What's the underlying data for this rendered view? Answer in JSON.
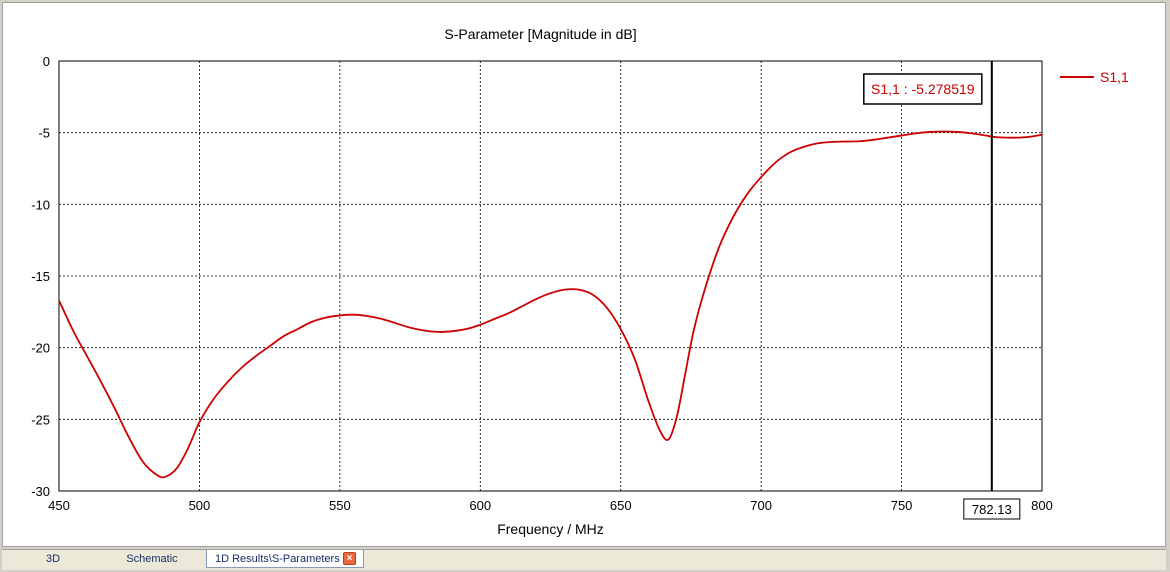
{
  "chart_data": {
    "type": "line",
    "title": "S-Parameter [Magnitude in dB]",
    "xlabel": "Frequency / MHz",
    "ylabel": "",
    "xlim": [
      450,
      800
    ],
    "ylim": [
      -30,
      0
    ],
    "x_ticks": [
      450,
      500,
      550,
      600,
      650,
      700,
      750,
      800
    ],
    "y_ticks": [
      0,
      -5,
      -10,
      -15,
      -20,
      -25,
      -30
    ],
    "grid": true,
    "legend_position": "right",
    "series": [
      {
        "name": "S1,1",
        "color": "#cc0000",
        "points": [
          [
            450,
            -16.7
          ],
          [
            455,
            -18.8
          ],
          [
            460,
            -20.6
          ],
          [
            465,
            -22.4
          ],
          [
            470,
            -24.3
          ],
          [
            475,
            -26.3
          ],
          [
            480,
            -28.0
          ],
          [
            485,
            -28.9
          ],
          [
            488,
            -29.0
          ],
          [
            492,
            -28.4
          ],
          [
            496,
            -27.0
          ],
          [
            500,
            -25.2
          ],
          [
            505,
            -23.6
          ],
          [
            510,
            -22.4
          ],
          [
            515,
            -21.4
          ],
          [
            520,
            -20.6
          ],
          [
            525,
            -19.9
          ],
          [
            530,
            -19.2
          ],
          [
            535,
            -18.7
          ],
          [
            540,
            -18.2
          ],
          [
            545,
            -17.9
          ],
          [
            550,
            -17.75
          ],
          [
            555,
            -17.7
          ],
          [
            560,
            -17.8
          ],
          [
            565,
            -18.0
          ],
          [
            570,
            -18.3
          ],
          [
            575,
            -18.6
          ],
          [
            580,
            -18.8
          ],
          [
            585,
            -18.9
          ],
          [
            590,
            -18.85
          ],
          [
            595,
            -18.7
          ],
          [
            600,
            -18.4
          ],
          [
            605,
            -18.0
          ],
          [
            610,
            -17.6
          ],
          [
            615,
            -17.1
          ],
          [
            620,
            -16.6
          ],
          [
            625,
            -16.2
          ],
          [
            630,
            -15.95
          ],
          [
            635,
            -15.95
          ],
          [
            640,
            -16.3
          ],
          [
            645,
            -17.2
          ],
          [
            650,
            -18.7
          ],
          [
            655,
            -20.8
          ],
          [
            660,
            -23.8
          ],
          [
            664,
            -25.8
          ],
          [
            667,
            -26.4
          ],
          [
            670,
            -24.8
          ],
          [
            673,
            -21.8
          ],
          [
            676,
            -18.8
          ],
          [
            680,
            -15.9
          ],
          [
            685,
            -13.0
          ],
          [
            690,
            -10.9
          ],
          [
            695,
            -9.3
          ],
          [
            700,
            -8.1
          ],
          [
            705,
            -7.1
          ],
          [
            710,
            -6.4
          ],
          [
            715,
            -6.0
          ],
          [
            720,
            -5.75
          ],
          [
            725,
            -5.65
          ],
          [
            730,
            -5.62
          ],
          [
            735,
            -5.6
          ],
          [
            740,
            -5.5
          ],
          [
            745,
            -5.35
          ],
          [
            750,
            -5.2
          ],
          [
            755,
            -5.05
          ],
          [
            760,
            -4.95
          ],
          [
            765,
            -4.92
          ],
          [
            770,
            -4.95
          ],
          [
            775,
            -5.05
          ],
          [
            780,
            -5.2
          ],
          [
            782.13,
            -5.28
          ],
          [
            785,
            -5.33
          ],
          [
            790,
            -5.35
          ],
          [
            795,
            -5.3
          ],
          [
            800,
            -5.15
          ]
        ]
      }
    ],
    "marker": {
      "x": 782.13,
      "x_label": "782.13",
      "label": "S1,1 : -5.278519"
    }
  },
  "tabs": [
    {
      "label": "3D",
      "active": false
    },
    {
      "label": "Schematic",
      "active": false
    },
    {
      "label": "1D Results\\S-Parameters",
      "active": true
    }
  ],
  "tab_close_symbol": "×"
}
